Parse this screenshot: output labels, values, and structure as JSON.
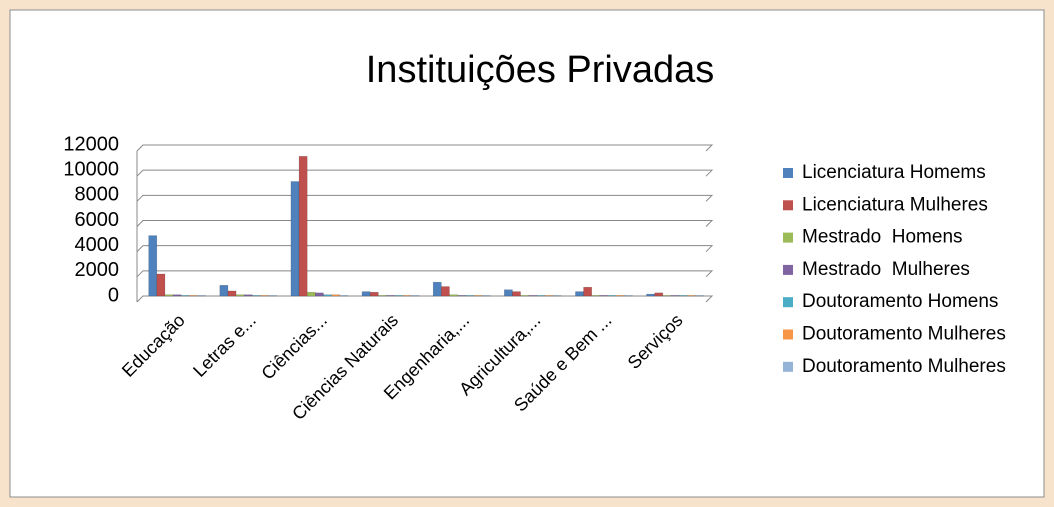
{
  "chart_data": {
    "type": "bar",
    "title": "Instituições Privadas",
    "categories": [
      "Educação",
      "Letras e...",
      "Ciências...",
      "Ciências Naturais",
      "Engenharia,...",
      "Agricultura,...",
      "Saúde e Bem ...",
      "Serviços"
    ],
    "series": [
      {
        "name": "Licenciatura Homems",
        "color": "#4f81bd",
        "values": [
          4800,
          850,
          9100,
          350,
          1100,
          500,
          350,
          150
        ]
      },
      {
        "name": "Licenciatura Mulheres",
        "color": "#c0504d",
        "values": [
          1750,
          400,
          11100,
          300,
          750,
          350,
          700,
          250
        ]
      },
      {
        "name": "Mestrado  Homens",
        "color": "#9bbb59",
        "values": [
          100,
          100,
          300,
          50,
          100,
          50,
          50,
          50
        ]
      },
      {
        "name": "Mestrado  Mulheres",
        "color": "#8064a2",
        "values": [
          100,
          100,
          250,
          50,
          50,
          50,
          50,
          50
        ]
      },
      {
        "name": "Doutoramento Homens",
        "color": "#4bacc6",
        "values": [
          50,
          50,
          100,
          50,
          50,
          50,
          50,
          50
        ]
      },
      {
        "name": "Doutoramento Mulheres",
        "color": "#f79646",
        "values": [
          50,
          50,
          100,
          50,
          50,
          50,
          50,
          50
        ]
      },
      {
        "name": "Doutoramento Mulheres",
        "color": "#95b3d7",
        "values": [
          50,
          50,
          50,
          50,
          50,
          50,
          50,
          50
        ]
      }
    ],
    "ylim": [
      0,
      12000
    ],
    "yticks": [
      0,
      2000,
      4000,
      6000,
      8000,
      10000,
      12000
    ],
    "grid": true,
    "legend": "right"
  }
}
